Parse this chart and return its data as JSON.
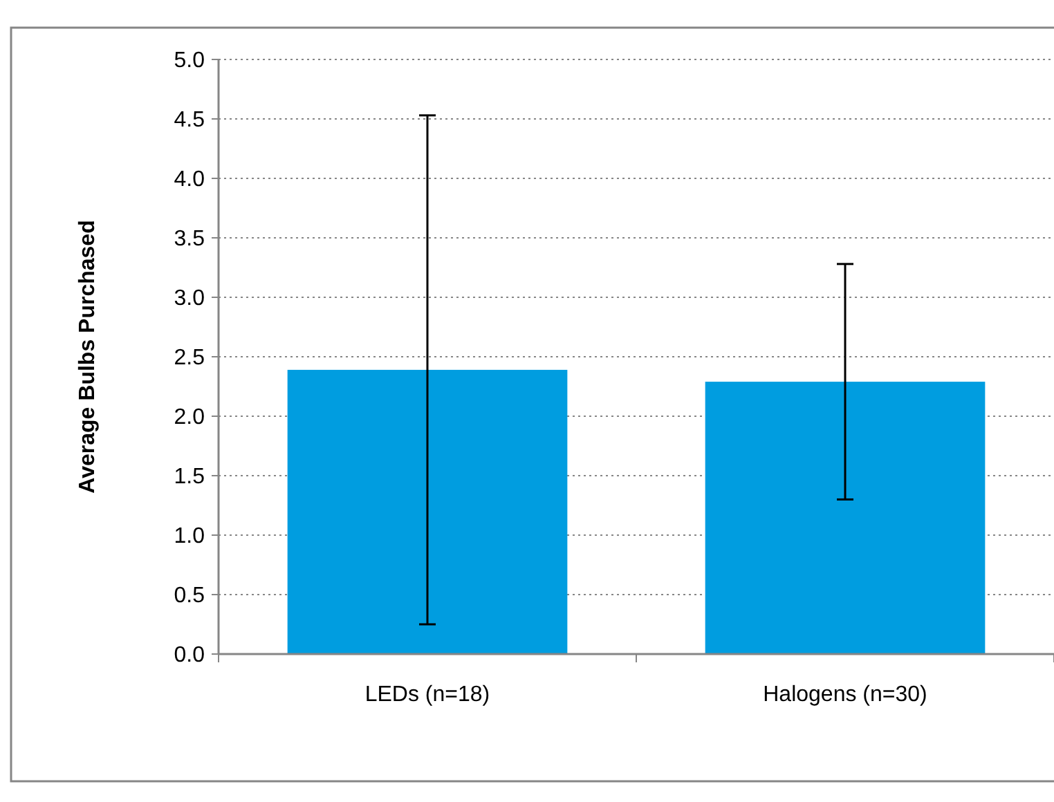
{
  "chart_data": {
    "type": "bar",
    "ylabel": "Average Bulbs Purchased",
    "categories": [
      "LEDs (n=18)",
      "Halogens (n=30)"
    ],
    "values": [
      2.39,
      2.29
    ],
    "errors": [
      2.14,
      0.99
    ],
    "color": "#009de0",
    "ylim": [
      0,
      5
    ],
    "yticks": [
      {
        "value": 0,
        "label": "0.0"
      },
      {
        "value": 0.5,
        "label": "0.5"
      },
      {
        "value": 1,
        "label": "1.0"
      },
      {
        "value": 1.5,
        "label": "1.5"
      },
      {
        "value": 2,
        "label": "2.0"
      },
      {
        "value": 2.5,
        "label": "2.5"
      },
      {
        "value": 3,
        "label": "3.0"
      },
      {
        "value": 3.5,
        "label": "3.5"
      },
      {
        "value": 4,
        "label": "4.0"
      },
      {
        "value": 4.5,
        "label": "4.5"
      },
      {
        "value": 5,
        "label": "5.0"
      }
    ],
    "grid": "y"
  }
}
